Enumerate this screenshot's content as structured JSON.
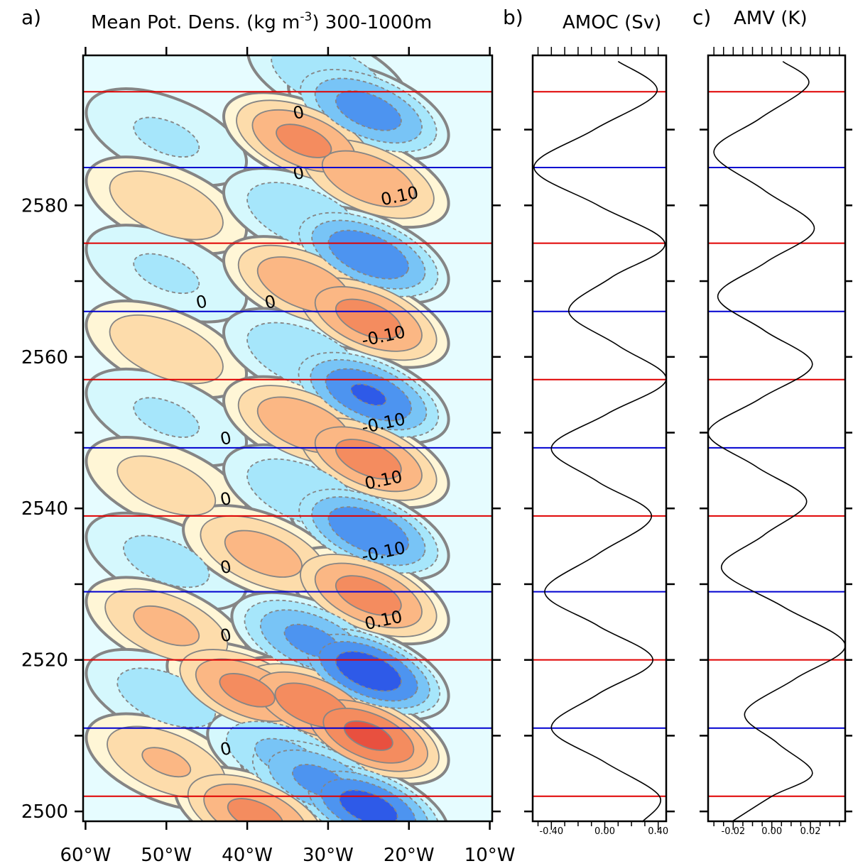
{
  "chart_data": [
    {
      "type": "contour",
      "label": "a)",
      "title": "Mean Pot. Dens. (kg m",
      "title_sup": "-3",
      "title_end": ") 300-1000m",
      "xlim": [
        -60.3,
        -9.7
      ],
      "xticks": [
        {
          "value": -60,
          "label": "60°W"
        },
        {
          "value": -50,
          "label": "50°W"
        },
        {
          "value": -40,
          "label": "40°W"
        },
        {
          "value": -30,
          "label": "30°W"
        },
        {
          "value": -20,
          "label": "20°W"
        },
        {
          "value": -10,
          "label": "10°W"
        }
      ],
      "ylim": [
        2498.7,
        2599.8
      ],
      "yticks": [
        2500,
        2520,
        2540,
        2560,
        2580
      ],
      "yminor_ticks": [
        2510,
        2530,
        2550,
        2570,
        2590
      ],
      "levels": [
        0,
        0.05,
        0.1,
        0.15,
        0.2,
        0.25
      ],
      "positive_colors": [
        "#fff6d6",
        "#fddcab",
        "#fbb784",
        "#f48c5f",
        "#e8503f",
        "#c82828"
      ],
      "negative_colors": [
        "#d5f8fd",
        "#a6e6fb",
        "#78c4f6",
        "#4d94f0",
        "#2e5ae8",
        "#1a1ad0"
      ],
      "blobs": [
        {
          "lon": -30,
          "year": 2597,
          "value": -0.1
        },
        {
          "lon": -25,
          "year": 2592.5,
          "value": -0.18
        },
        {
          "lon": -50,
          "year": 2589,
          "value": -0.06
        },
        {
          "lon": -33,
          "year": 2588.5,
          "value": 0.17
        },
        {
          "lon": -25,
          "year": 2583.5,
          "value": 0.15
        },
        {
          "lon": -50,
          "year": 2580,
          "value": 0.1
        },
        {
          "lon": -33,
          "year": 2578.5,
          "value": -0.1
        },
        {
          "lon": -25,
          "year": 2573.5,
          "value": -0.2
        },
        {
          "lon": -50,
          "year": 2571,
          "value": -0.06
        },
        {
          "lon": -33,
          "year": 2569.5,
          "value": 0.15
        },
        {
          "lon": -25,
          "year": 2565,
          "value": 0.18
        },
        {
          "lon": -50,
          "year": 2561,
          "value": 0.1
        },
        {
          "lon": -33,
          "year": 2560,
          "value": -0.1
        },
        {
          "lon": -25,
          "year": 2555,
          "value": -0.21
        },
        {
          "lon": -50,
          "year": 2552,
          "value": -0.06
        },
        {
          "lon": -33,
          "year": 2551,
          "value": 0.15
        },
        {
          "lon": -25,
          "year": 2546.5,
          "value": 0.18
        },
        {
          "lon": -50,
          "year": 2543,
          "value": 0.08
        },
        {
          "lon": -33,
          "year": 2542,
          "value": -0.1
        },
        {
          "lon": -25,
          "year": 2537,
          "value": -0.2
        },
        {
          "lon": -50,
          "year": 2533,
          "value": -0.07
        },
        {
          "lon": -38,
          "year": 2534,
          "value": 0.13
        },
        {
          "lon": -25,
          "year": 2528.5,
          "value": 0.18
        },
        {
          "lon": -50,
          "year": 2524.5,
          "value": 0.12
        },
        {
          "lon": -32,
          "year": 2522.5,
          "value": -0.17
        },
        {
          "lon": -25,
          "year": 2518.5,
          "value": -0.24
        },
        {
          "lon": -50,
          "year": 2515,
          "value": -0.08
        },
        {
          "lon": -40,
          "year": 2516,
          "value": 0.17
        },
        {
          "lon": -32,
          "year": 2514,
          "value": 0.19
        },
        {
          "lon": -25,
          "year": 2510,
          "value": 0.22
        },
        {
          "lon": -50,
          "year": 2506.5,
          "value": 0.11
        },
        {
          "lon": -35,
          "year": 2507,
          "value": -0.12
        },
        {
          "lon": -31,
          "year": 2504,
          "value": -0.17
        },
        {
          "lon": -25,
          "year": 2500.5,
          "value": -0.23
        },
        {
          "lon": -39,
          "year": 2499.5,
          "value": 0.17
        }
      ],
      "contour_labels": [
        {
          "text": "0",
          "lon": -33.5,
          "year": 2591.5
        },
        {
          "text": "0",
          "lon": -33.5,
          "year": 2583.5
        },
        {
          "text": "0.10",
          "lon": -21,
          "year": 2580.5
        },
        {
          "text": "0",
          "lon": -45.5,
          "year": 2566.5
        },
        {
          "text": "0",
          "lon": -37,
          "year": 2566.5
        },
        {
          "text": "-0.10",
          "lon": -23,
          "year": 2562
        },
        {
          "text": "0",
          "lon": -42.5,
          "year": 2548.5
        },
        {
          "text": "-0.10",
          "lon": -23,
          "year": 2550.5
        },
        {
          "text": "0.10",
          "lon": -23,
          "year": 2543
        },
        {
          "text": "0",
          "lon": -42.5,
          "year": 2540.5
        },
        {
          "text": "-0.10",
          "lon": -23,
          "year": 2533.5
        },
        {
          "text": "0",
          "lon": -42.5,
          "year": 2531.5
        },
        {
          "text": "0.10",
          "lon": -23,
          "year": 2524.5
        },
        {
          "text": "0",
          "lon": -42.5,
          "year": 2522.5
        },
        {
          "text": "0",
          "lon": -42.5,
          "year": 2507.5
        }
      ],
      "hlines": [
        {
          "color": "#e00000",
          "values": [
            2595,
            2575,
            2557,
            2539,
            2520,
            2502
          ]
        },
        {
          "color": "#0000d0",
          "values": [
            2585,
            2566,
            2548,
            2529,
            2511
          ]
        }
      ]
    },
    {
      "type": "profile",
      "label": "b)",
      "title": "AMOC (Sv)",
      "xlim": [
        -0.54,
        0.46
      ],
      "xticks": [
        {
          "value": -0.4,
          "label": "-0.40"
        },
        {
          "value": 0,
          "label": "0.00"
        },
        {
          "value": 0.4,
          "label": "0.40"
        }
      ],
      "xminor_ticks": [
        -0.5,
        -0.3,
        -0.2,
        -0.1,
        0.1,
        0.2,
        0.3
      ],
      "ylim": [
        2498.7,
        2599.8
      ],
      "yminor_ticks": [
        2500,
        2510,
        2520,
        2530,
        2540,
        2550,
        2560,
        2570,
        2580,
        2590
      ],
      "series": [
        {
          "color": "#000000",
          "x": [
            2599,
            2595,
            2590,
            2585,
            2580,
            2575,
            2570.5,
            2566,
            2561.5,
            2557,
            2552.5,
            2548,
            2543.5,
            2539,
            2534,
            2529,
            2524.5,
            2520,
            2515.5,
            2511,
            2506.5,
            2502,
            2498.6
          ],
          "values": [
            0.1,
            0.39,
            -0.08,
            -0.53,
            -0.05,
            0.45,
            0.05,
            -0.27,
            0.1,
            0.46,
            0.02,
            -0.4,
            -0.05,
            0.35,
            -0.05,
            -0.45,
            -0.05,
            0.36,
            -0.05,
            -0.4,
            0.0,
            0.41,
            0.28
          ]
        }
      ],
      "hlines": [
        {
          "color": "#e00000",
          "values": [
            2595,
            2575,
            2557,
            2539,
            2520,
            2502
          ]
        },
        {
          "color": "#0000d0",
          "values": [
            2585,
            2566,
            2548,
            2529,
            2511
          ]
        }
      ]
    },
    {
      "type": "profile",
      "label": "c)",
      "title": "AMV (K)",
      "xlim": [
        -0.033,
        0.038
      ],
      "xticks": [
        {
          "value": -0.02,
          "label": "-0.02"
        },
        {
          "value": 0,
          "label": "0.00"
        },
        {
          "value": 0.02,
          "label": "0.02"
        }
      ],
      "xminor_ticks": [
        -0.03,
        -0.025,
        -0.015,
        -0.01,
        -0.005,
        0.005,
        0.01,
        0.015,
        0.025,
        0.03,
        0.035
      ],
      "ylim": [
        2498.7,
        2599.8
      ],
      "yminor_ticks": [
        2500,
        2510,
        2520,
        2530,
        2540,
        2550,
        2560,
        2570,
        2580,
        2590
      ],
      "series": [
        {
          "color": "#000000",
          "x": [
            2599,
            2596,
            2591.5,
            2587,
            2582,
            2577,
            2572.5,
            2568,
            2563.5,
            2559,
            2554.5,
            2550,
            2545.5,
            2541,
            2536.5,
            2532,
            2527,
            2522,
            2517.5,
            2513,
            2509,
            2505,
            2502,
            2498.6
          ],
          "values": [
            0.0057,
            0.019,
            -0.006,
            -0.03,
            -0.004,
            0.022,
            -0.003,
            -0.028,
            -0.004,
            0.021,
            -0.006,
            -0.033,
            -0.008,
            0.018,
            -0.004,
            -0.026,
            0.006,
            0.038,
            0.012,
            -0.014,
            0.003,
            0.021,
            0.0,
            -0.021
          ]
        }
      ],
      "hlines": [
        {
          "color": "#e00000",
          "values": [
            2595,
            2575,
            2557,
            2539,
            2520,
            2502
          ]
        },
        {
          "color": "#0000d0",
          "values": [
            2585,
            2566,
            2548,
            2529,
            2511
          ]
        }
      ]
    }
  ]
}
